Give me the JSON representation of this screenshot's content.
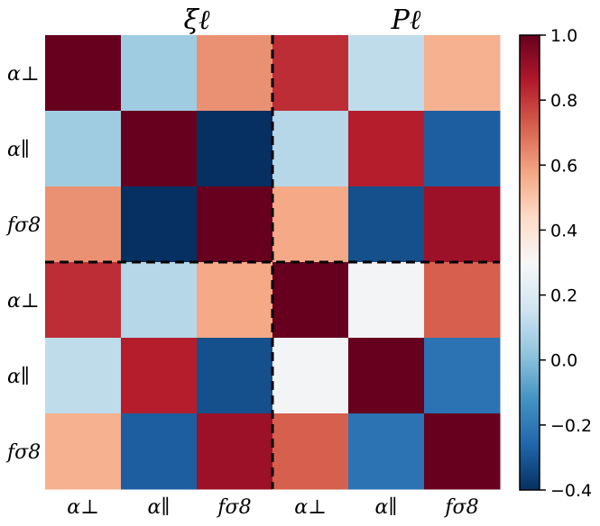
{
  "chart_data": {
    "type": "heatmap",
    "title": "",
    "block_titles": [
      "ξℓ",
      "Pℓ"
    ],
    "row_labels": [
      "α⊥",
      "α∥",
      "fσ8",
      "α⊥",
      "α∥",
      "fσ8"
    ],
    "col_labels": [
      "α⊥",
      "α∥",
      "fσ8",
      "α⊥",
      "α∥",
      "fσ8"
    ],
    "values": [
      [
        1.0,
        0.05,
        0.62,
        0.82,
        0.12,
        0.55
      ],
      [
        0.05,
        1.0,
        -0.4,
        0.1,
        0.85,
        -0.28
      ],
      [
        0.62,
        -0.4,
        1.0,
        0.57,
        -0.32,
        0.9
      ],
      [
        0.82,
        0.1,
        0.57,
        1.0,
        0.28,
        0.72
      ],
      [
        0.12,
        0.85,
        -0.32,
        0.28,
        1.0,
        -0.22
      ],
      [
        0.55,
        -0.28,
        0.9,
        0.72,
        -0.22,
        1.0
      ]
    ],
    "colorbar": {
      "colormap": "RdBu_r",
      "vmin": -0.4,
      "vmax": 1.0,
      "ticks": [
        1.0,
        0.8,
        0.6,
        0.4,
        0.2,
        0.0,
        -0.2,
        -0.4
      ],
      "tick_labels": [
        "1.0",
        "0.8",
        "0.6",
        "0.4",
        "0.2",
        "0.0",
        "−0.2",
        "−0.4"
      ]
    },
    "block_dividers": "dashed black lines between the ξℓ block and the Pℓ block"
  }
}
